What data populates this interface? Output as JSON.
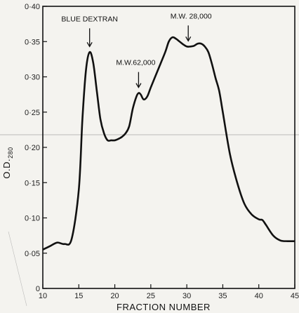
{
  "chart_data": {
    "type": "line",
    "title": "",
    "xlabel": "FRACTION NUMBER",
    "ylabel": "O.D.",
    "ylabel_sub": "280",
    "xlim": [
      10,
      45
    ],
    "ylim": [
      0,
      0.4
    ],
    "xticks": [
      10,
      15,
      20,
      25,
      30,
      35,
      40,
      45
    ],
    "xtick_labels": [
      "10",
      "15",
      "20",
      "25",
      "30",
      "35",
      "40",
      "45"
    ],
    "yticks": [
      0,
      0.05,
      0.1,
      0.15,
      0.2,
      0.25,
      0.3,
      0.35,
      0.4
    ],
    "ytick_labels": [
      "0",
      "0·05",
      "0·10",
      "0·15",
      "0·20",
      "0·25",
      "0·30",
      "0·35",
      "0·40"
    ],
    "grid": false,
    "series": [
      {
        "x": [
          10,
          11,
          12,
          13,
          14,
          15,
          15.5,
          16,
          16.5,
          17,
          17.5,
          18,
          18.5,
          19,
          19.5,
          20,
          20.5,
          21,
          21.5,
          22,
          22.5,
          23,
          23.3,
          23.6,
          24,
          24.5,
          25,
          26,
          27,
          27.5,
          28,
          28.5,
          29,
          29.5,
          30,
          30.5,
          31,
          31.5,
          32,
          32.5,
          33,
          33.5,
          34,
          34.5,
          35,
          36,
          37,
          38,
          39,
          40,
          40.5,
          41,
          42,
          43,
          44,
          45
        ],
        "y": [
          0.055,
          0.06,
          0.065,
          0.063,
          0.07,
          0.14,
          0.24,
          0.31,
          0.335,
          0.32,
          0.28,
          0.24,
          0.22,
          0.21,
          0.21,
          0.21,
          0.212,
          0.215,
          0.22,
          0.23,
          0.255,
          0.272,
          0.277,
          0.275,
          0.268,
          0.272,
          0.285,
          0.31,
          0.335,
          0.35,
          0.356,
          0.354,
          0.35,
          0.346,
          0.343,
          0.343,
          0.344,
          0.347,
          0.347,
          0.343,
          0.335,
          0.318,
          0.298,
          0.28,
          0.25,
          0.19,
          0.15,
          0.12,
          0.105,
          0.098,
          0.097,
          0.09,
          0.075,
          0.068,
          0.067,
          0.067
        ]
      }
    ],
    "annotations": [
      {
        "text": "BLUE DEXTRAN",
        "x": 16.5,
        "y": 0.335
      },
      {
        "text": "M.W.62,000",
        "x": 23.3,
        "y": 0.277
      },
      {
        "text": "M.W. 28,000",
        "x": 30.2,
        "y": 0.343
      }
    ]
  }
}
